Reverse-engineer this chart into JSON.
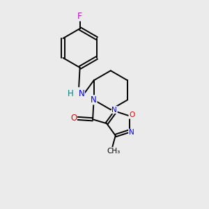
{
  "bg_color": "#ebebeb",
  "bond_color": "#000000",
  "atom_colors": {
    "F": "#cc00cc",
    "N": "#0000ee",
    "O": "#ee0000",
    "C": "#000000",
    "H": "#008080"
  },
  "lw": 1.4,
  "fs": 8.5,
  "fs_small": 7.5
}
